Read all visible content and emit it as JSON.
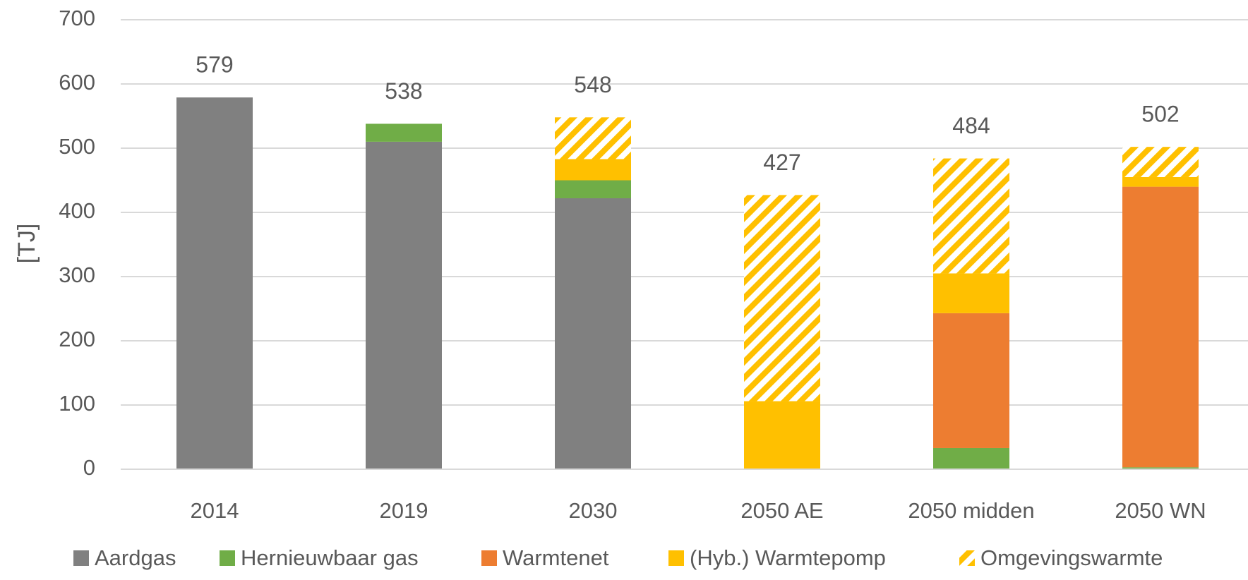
{
  "chart_data": {
    "type": "stacked_bar",
    "y_label": "[TJ]",
    "categories": [
      "2014",
      "2019",
      "2030",
      "2050 AE",
      "2050 midden",
      "2050 WN"
    ],
    "series": [
      {
        "name": "Aardgas",
        "color": "#808080",
        "values": [
          579,
          510,
          422,
          0,
          0,
          0
        ]
      },
      {
        "name": "Hernieuwbaar gas",
        "color": "#70ad47",
        "values": [
          0,
          28,
          28,
          0,
          33,
          3
        ]
      },
      {
        "name": "Warmtenet",
        "color": "#ed7d31",
        "values": [
          0,
          0,
          0,
          0,
          210,
          437
        ]
      },
      {
        "name": "(Hyb.) Warmtepomp",
        "color": "#ffc000",
        "values": [
          0,
          0,
          33,
          106,
          62,
          15
        ]
      },
      {
        "name": "Omgevingswarmte",
        "color": "#ffc000",
        "pattern": "hatch",
        "values": [
          0,
          0,
          65,
          321,
          179,
          47
        ]
      }
    ],
    "totals": [
      579,
      538,
      548,
      427,
      484,
      502
    ],
    "ylim": [
      0,
      700
    ],
    "yticks": [
      0,
      100,
      200,
      300,
      400,
      500,
      600,
      700
    ],
    "grid": true,
    "legend": "bottom"
  }
}
